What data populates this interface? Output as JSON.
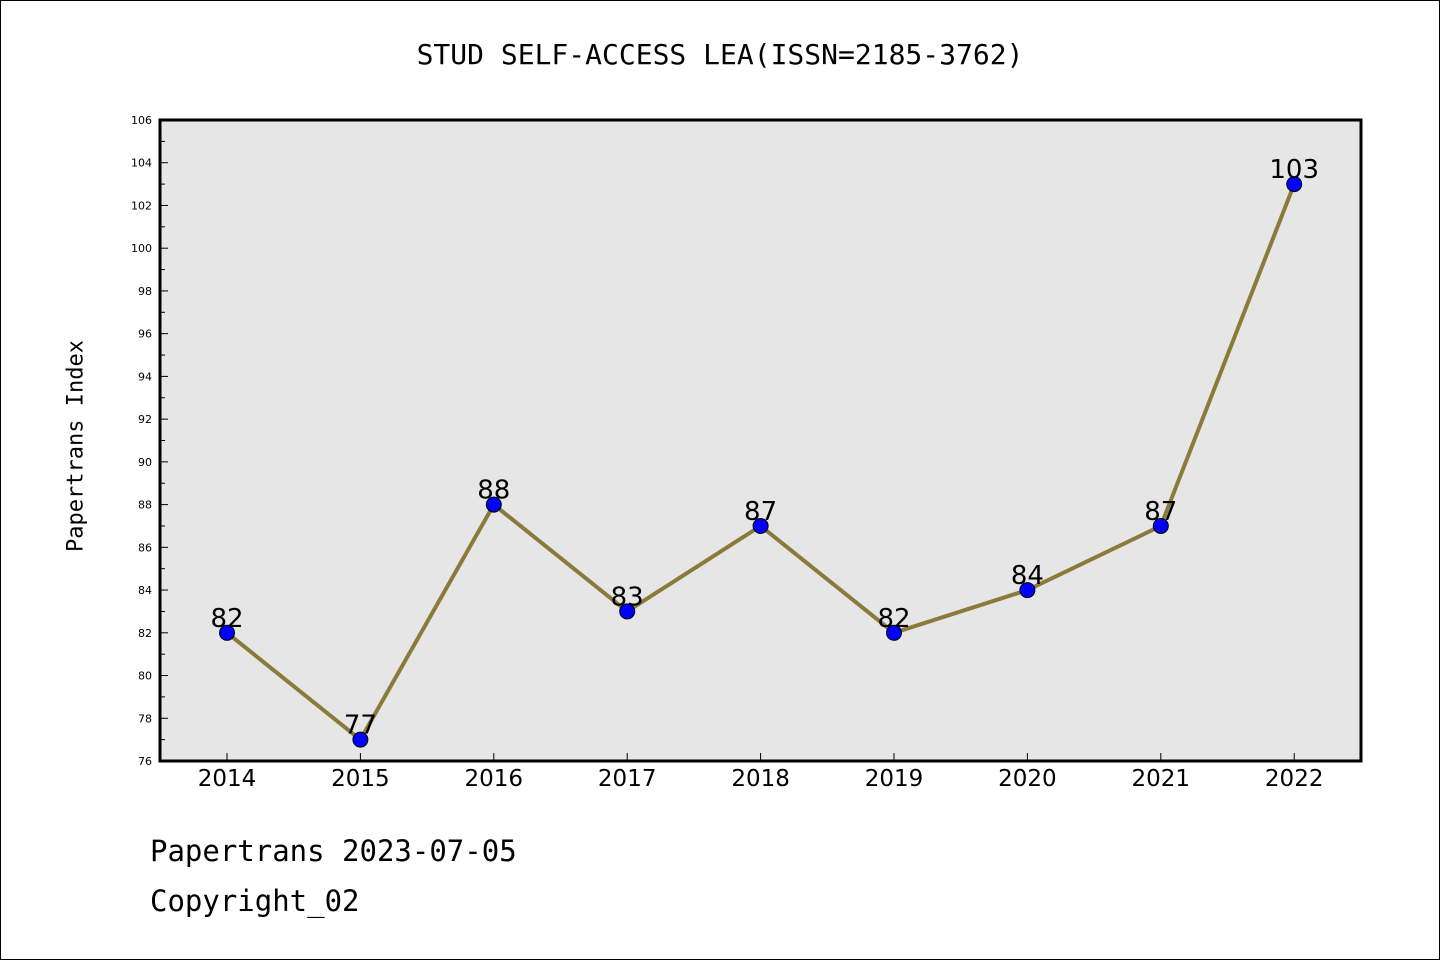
{
  "chart_data": {
    "type": "line",
    "title": "STUD SELF-ACCESS LEA(ISSN=2185-3762)",
    "ylabel": "Papertrans Index",
    "xlabel": "",
    "categories": [
      "2014",
      "2015",
      "2016",
      "2017",
      "2018",
      "2019",
      "2020",
      "2021",
      "2022"
    ],
    "series": [
      {
        "values": [
          82,
          77,
          88,
          83,
          87,
          82,
          84,
          87,
          103
        ]
      }
    ],
    "ylim": [
      76,
      106
    ],
    "yticks": [
      76,
      78,
      80,
      82,
      84,
      86,
      88,
      90,
      92,
      94,
      96,
      98,
      100,
      102,
      104,
      106
    ],
    "grid": false,
    "line_color": "#8c7a3a",
    "marker_color": "#0000ff",
    "plot_background": "#e6e6e6"
  },
  "footer": {
    "line1": "Papertrans 2023-07-05",
    "line2": "Copyright_02"
  }
}
